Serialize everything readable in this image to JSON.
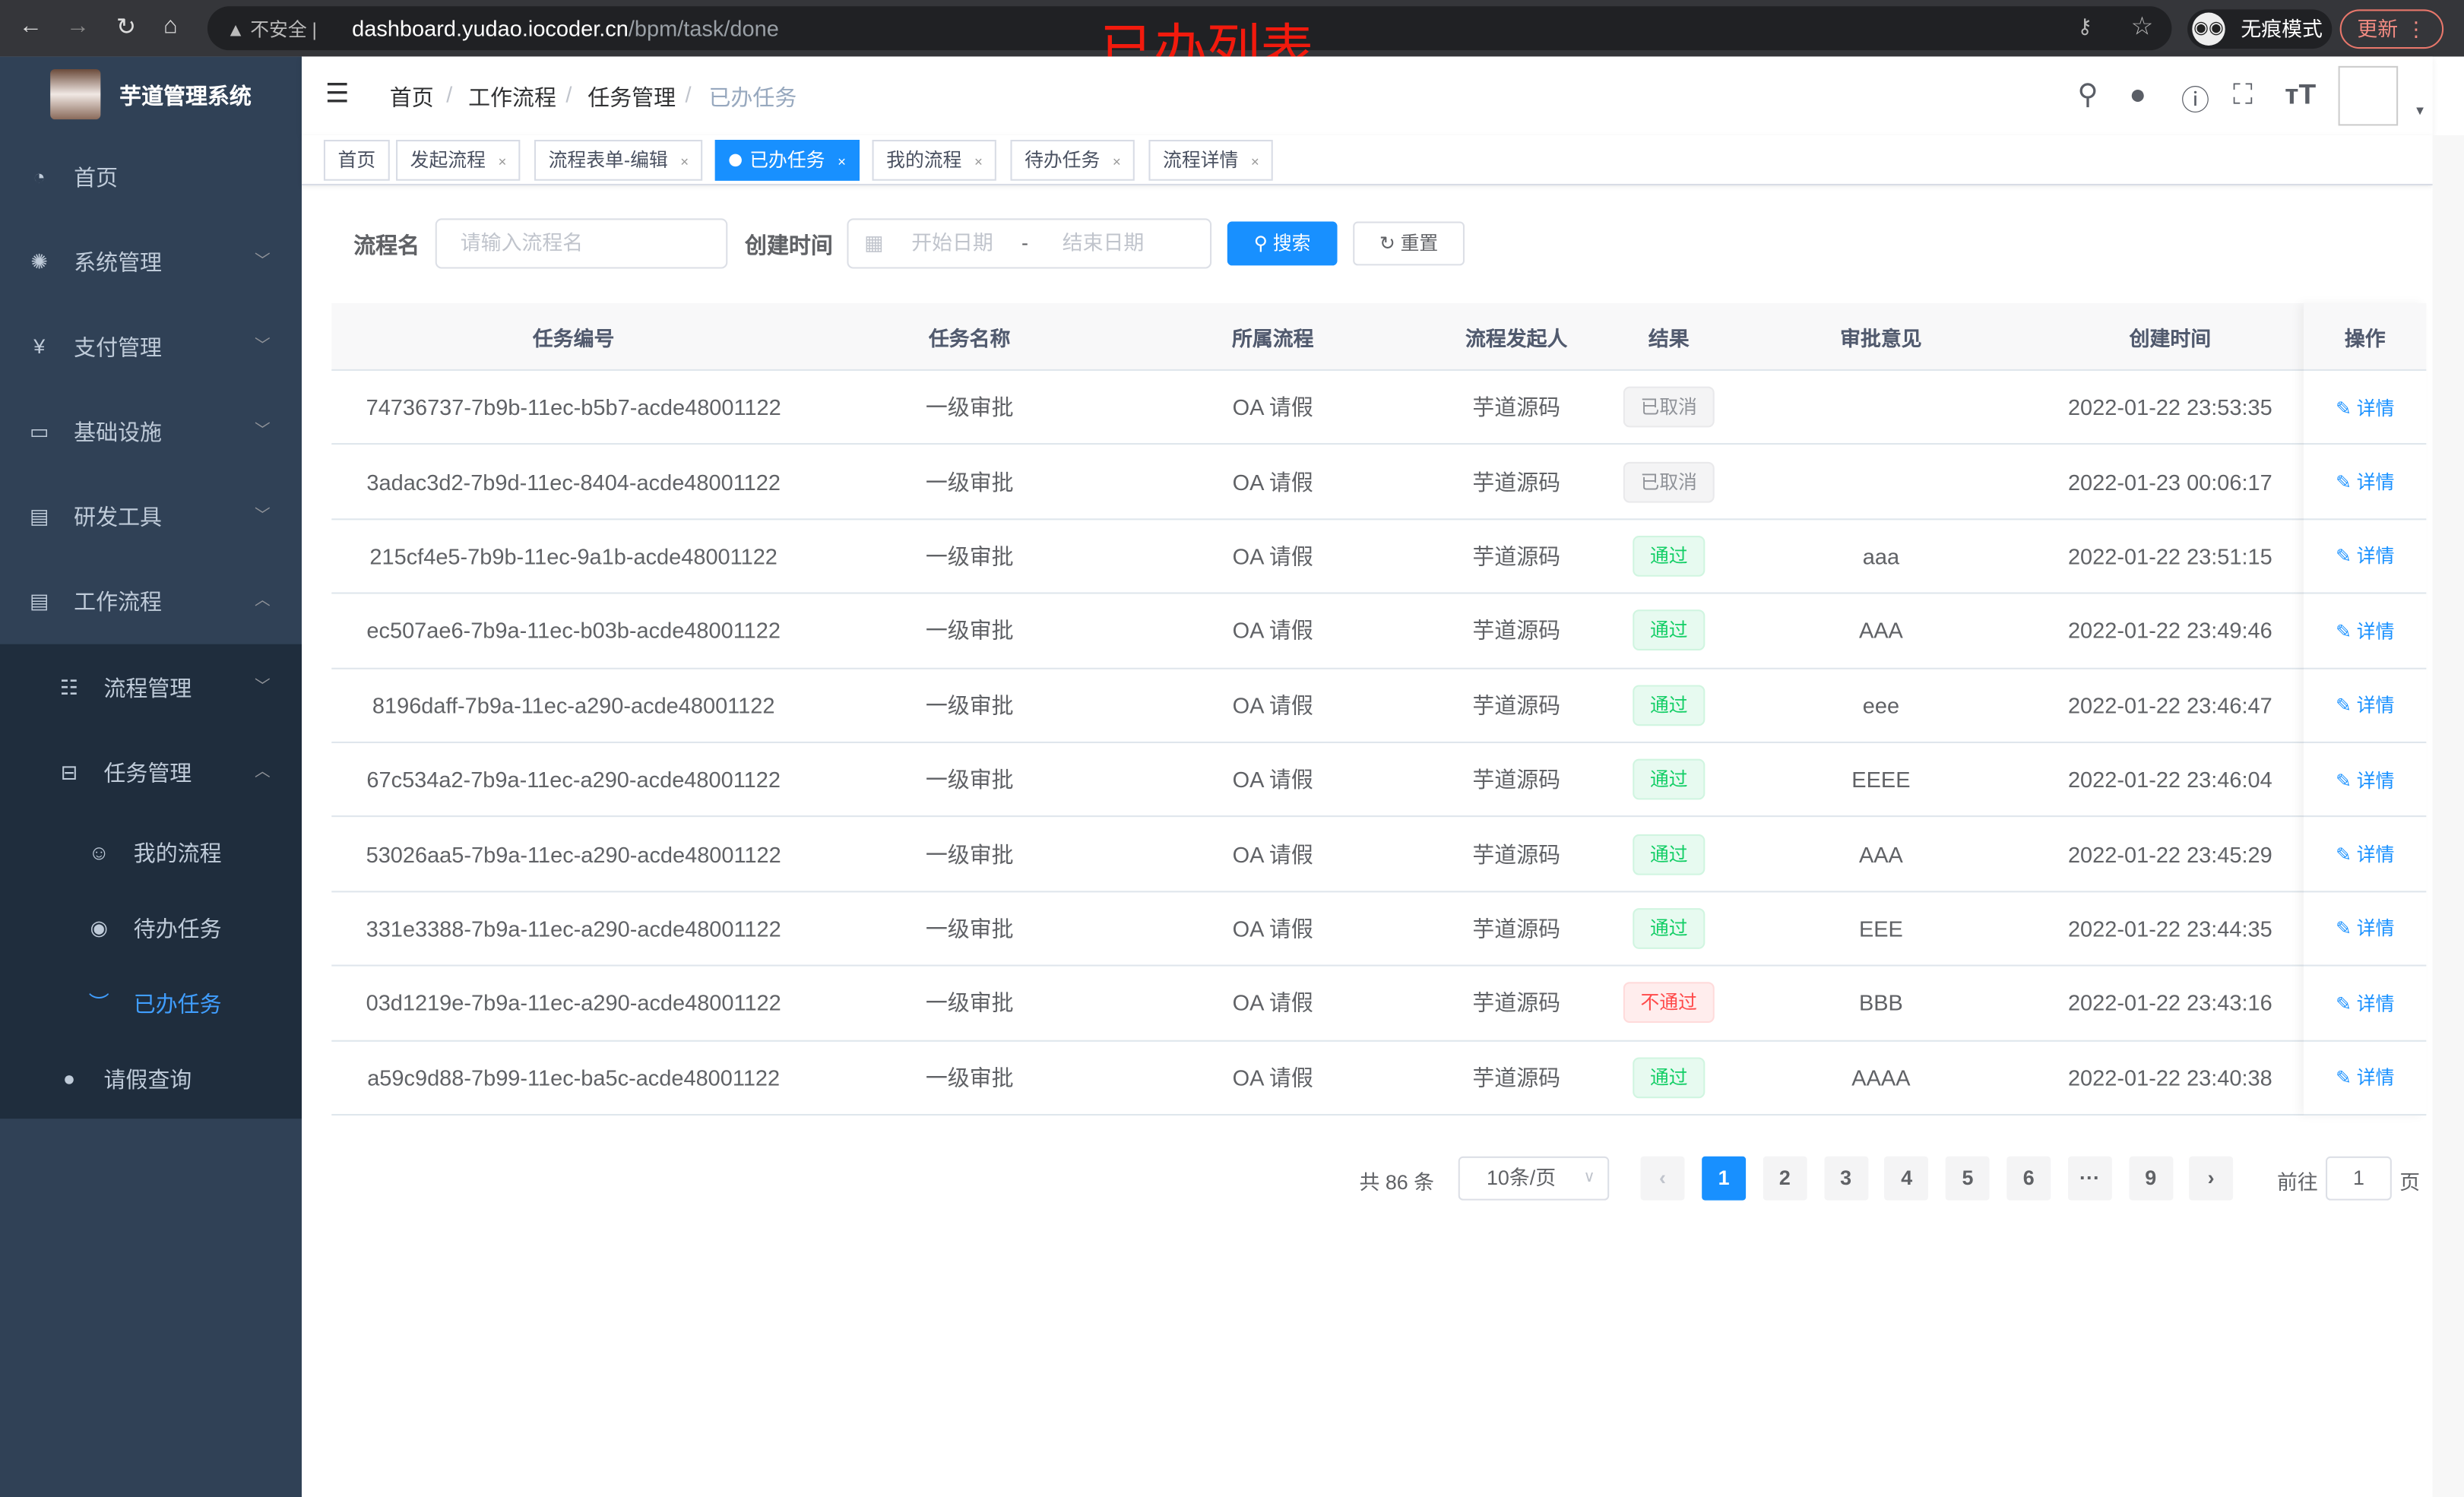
{
  "browser": {
    "insecure_label": "不安全",
    "url_host": "dashboard.yudao.iocoder.cn",
    "url_path": "/bpm/task/done",
    "incognito_label": "无痕模式",
    "update_label": "更新"
  },
  "annotation": "已办列表",
  "app": {
    "title": "芋道管理系统"
  },
  "sidebar": {
    "items": [
      {
        "label": "首页",
        "icon": "dashboard-icon"
      },
      {
        "label": "系统管理",
        "icon": "gear-icon"
      },
      {
        "label": "支付管理",
        "icon": "yen-icon"
      },
      {
        "label": "基础设施",
        "icon": "monitor-icon"
      },
      {
        "label": "研发工具",
        "icon": "toolbox-icon"
      },
      {
        "label": "工作流程",
        "icon": "toolbox-icon"
      },
      {
        "label": "流程管理",
        "icon": "list-icon"
      },
      {
        "label": "任务管理",
        "icon": "task-icon"
      },
      {
        "label": "我的流程",
        "icon": "face-icon"
      },
      {
        "label": "待办任务",
        "icon": "eye-icon"
      },
      {
        "label": "已办任务",
        "icon": "eye-closed-icon"
      },
      {
        "label": "请假查询",
        "icon": "user-icon"
      }
    ]
  },
  "breadcrumb": [
    "首页",
    "工作流程",
    "任务管理",
    "已办任务"
  ],
  "tags": [
    {
      "label": "首页"
    },
    {
      "label": "发起流程"
    },
    {
      "label": "流程表单-编辑"
    },
    {
      "label": "已办任务"
    },
    {
      "label": "我的流程"
    },
    {
      "label": "待办任务"
    },
    {
      "label": "流程详情"
    }
  ],
  "filter": {
    "name_label": "流程名",
    "name_placeholder": "请输入流程名",
    "time_label": "创建时间",
    "start_placeholder": "开始日期",
    "range_sep": "-",
    "end_placeholder": "结束日期",
    "search_label": "搜索",
    "reset_label": "重置"
  },
  "table": {
    "columns": [
      "任务编号",
      "任务名称",
      "所属流程",
      "流程发起人",
      "结果",
      "审批意见",
      "创建时间",
      "操作"
    ],
    "rows": [
      [
        "74736737-7b9b-11ec-b5b7-acde48001122",
        "一级审批",
        "OA 请假",
        "芋道源码",
        "已取消",
        "",
        "2022-01-22 23:53:35"
      ],
      [
        "3adac3d2-7b9d-11ec-8404-acde48001122",
        "一级审批",
        "OA 请假",
        "芋道源码",
        "已取消",
        "",
        "2022-01-23 00:06:17"
      ],
      [
        "215cf4e5-7b9b-11ec-9a1b-acde48001122",
        "一级审批",
        "OA 请假",
        "芋道源码",
        "通过",
        "aaa",
        "2022-01-22 23:51:15"
      ],
      [
        "ec507ae6-7b9a-11ec-b03b-acde48001122",
        "一级审批",
        "OA 请假",
        "芋道源码",
        "通过",
        "AAA",
        "2022-01-22 23:49:46"
      ],
      [
        "8196daff-7b9a-11ec-a290-acde48001122",
        "一级审批",
        "OA 请假",
        "芋道源码",
        "通过",
        "eee",
        "2022-01-22 23:46:47"
      ],
      [
        "67c534a2-7b9a-11ec-a290-acde48001122",
        "一级审批",
        "OA 请假",
        "芋道源码",
        "通过",
        "EEEE",
        "2022-01-22 23:46:04"
      ],
      [
        "53026aa5-7b9a-11ec-a290-acde48001122",
        "一级审批",
        "OA 请假",
        "芋道源码",
        "通过",
        "AAA",
        "2022-01-22 23:45:29"
      ],
      [
        "331e3388-7b9a-11ec-a290-acde48001122",
        "一级审批",
        "OA 请假",
        "芋道源码",
        "通过",
        "EEE",
        "2022-01-22 23:44:35"
      ],
      [
        "03d1219e-7b9a-11ec-a290-acde48001122",
        "一级审批",
        "OA 请假",
        "芋道源码",
        "不通过",
        "BBB",
        "2022-01-22 23:43:16"
      ],
      [
        "a59c9d88-7b99-11ec-ba5c-acde48001122",
        "一级审批",
        "OA 请假",
        "芋道源码",
        "通过",
        "AAAA",
        "2022-01-22 23:40:38"
      ]
    ],
    "action_label": "详情"
  },
  "result_colors": {
    "已取消": "#909399",
    "通过": "#13ce66",
    "不通过": "#ff4949"
  },
  "pagination": {
    "total_text": "共 86 条",
    "page_size": "10条/页",
    "pages": [
      "1",
      "2",
      "3",
      "4",
      "5",
      "6",
      "···",
      "9"
    ],
    "current": "1",
    "goto_label": "前往",
    "goto_value": "1",
    "page_suffix": "页"
  },
  "accent": "#1890ff"
}
